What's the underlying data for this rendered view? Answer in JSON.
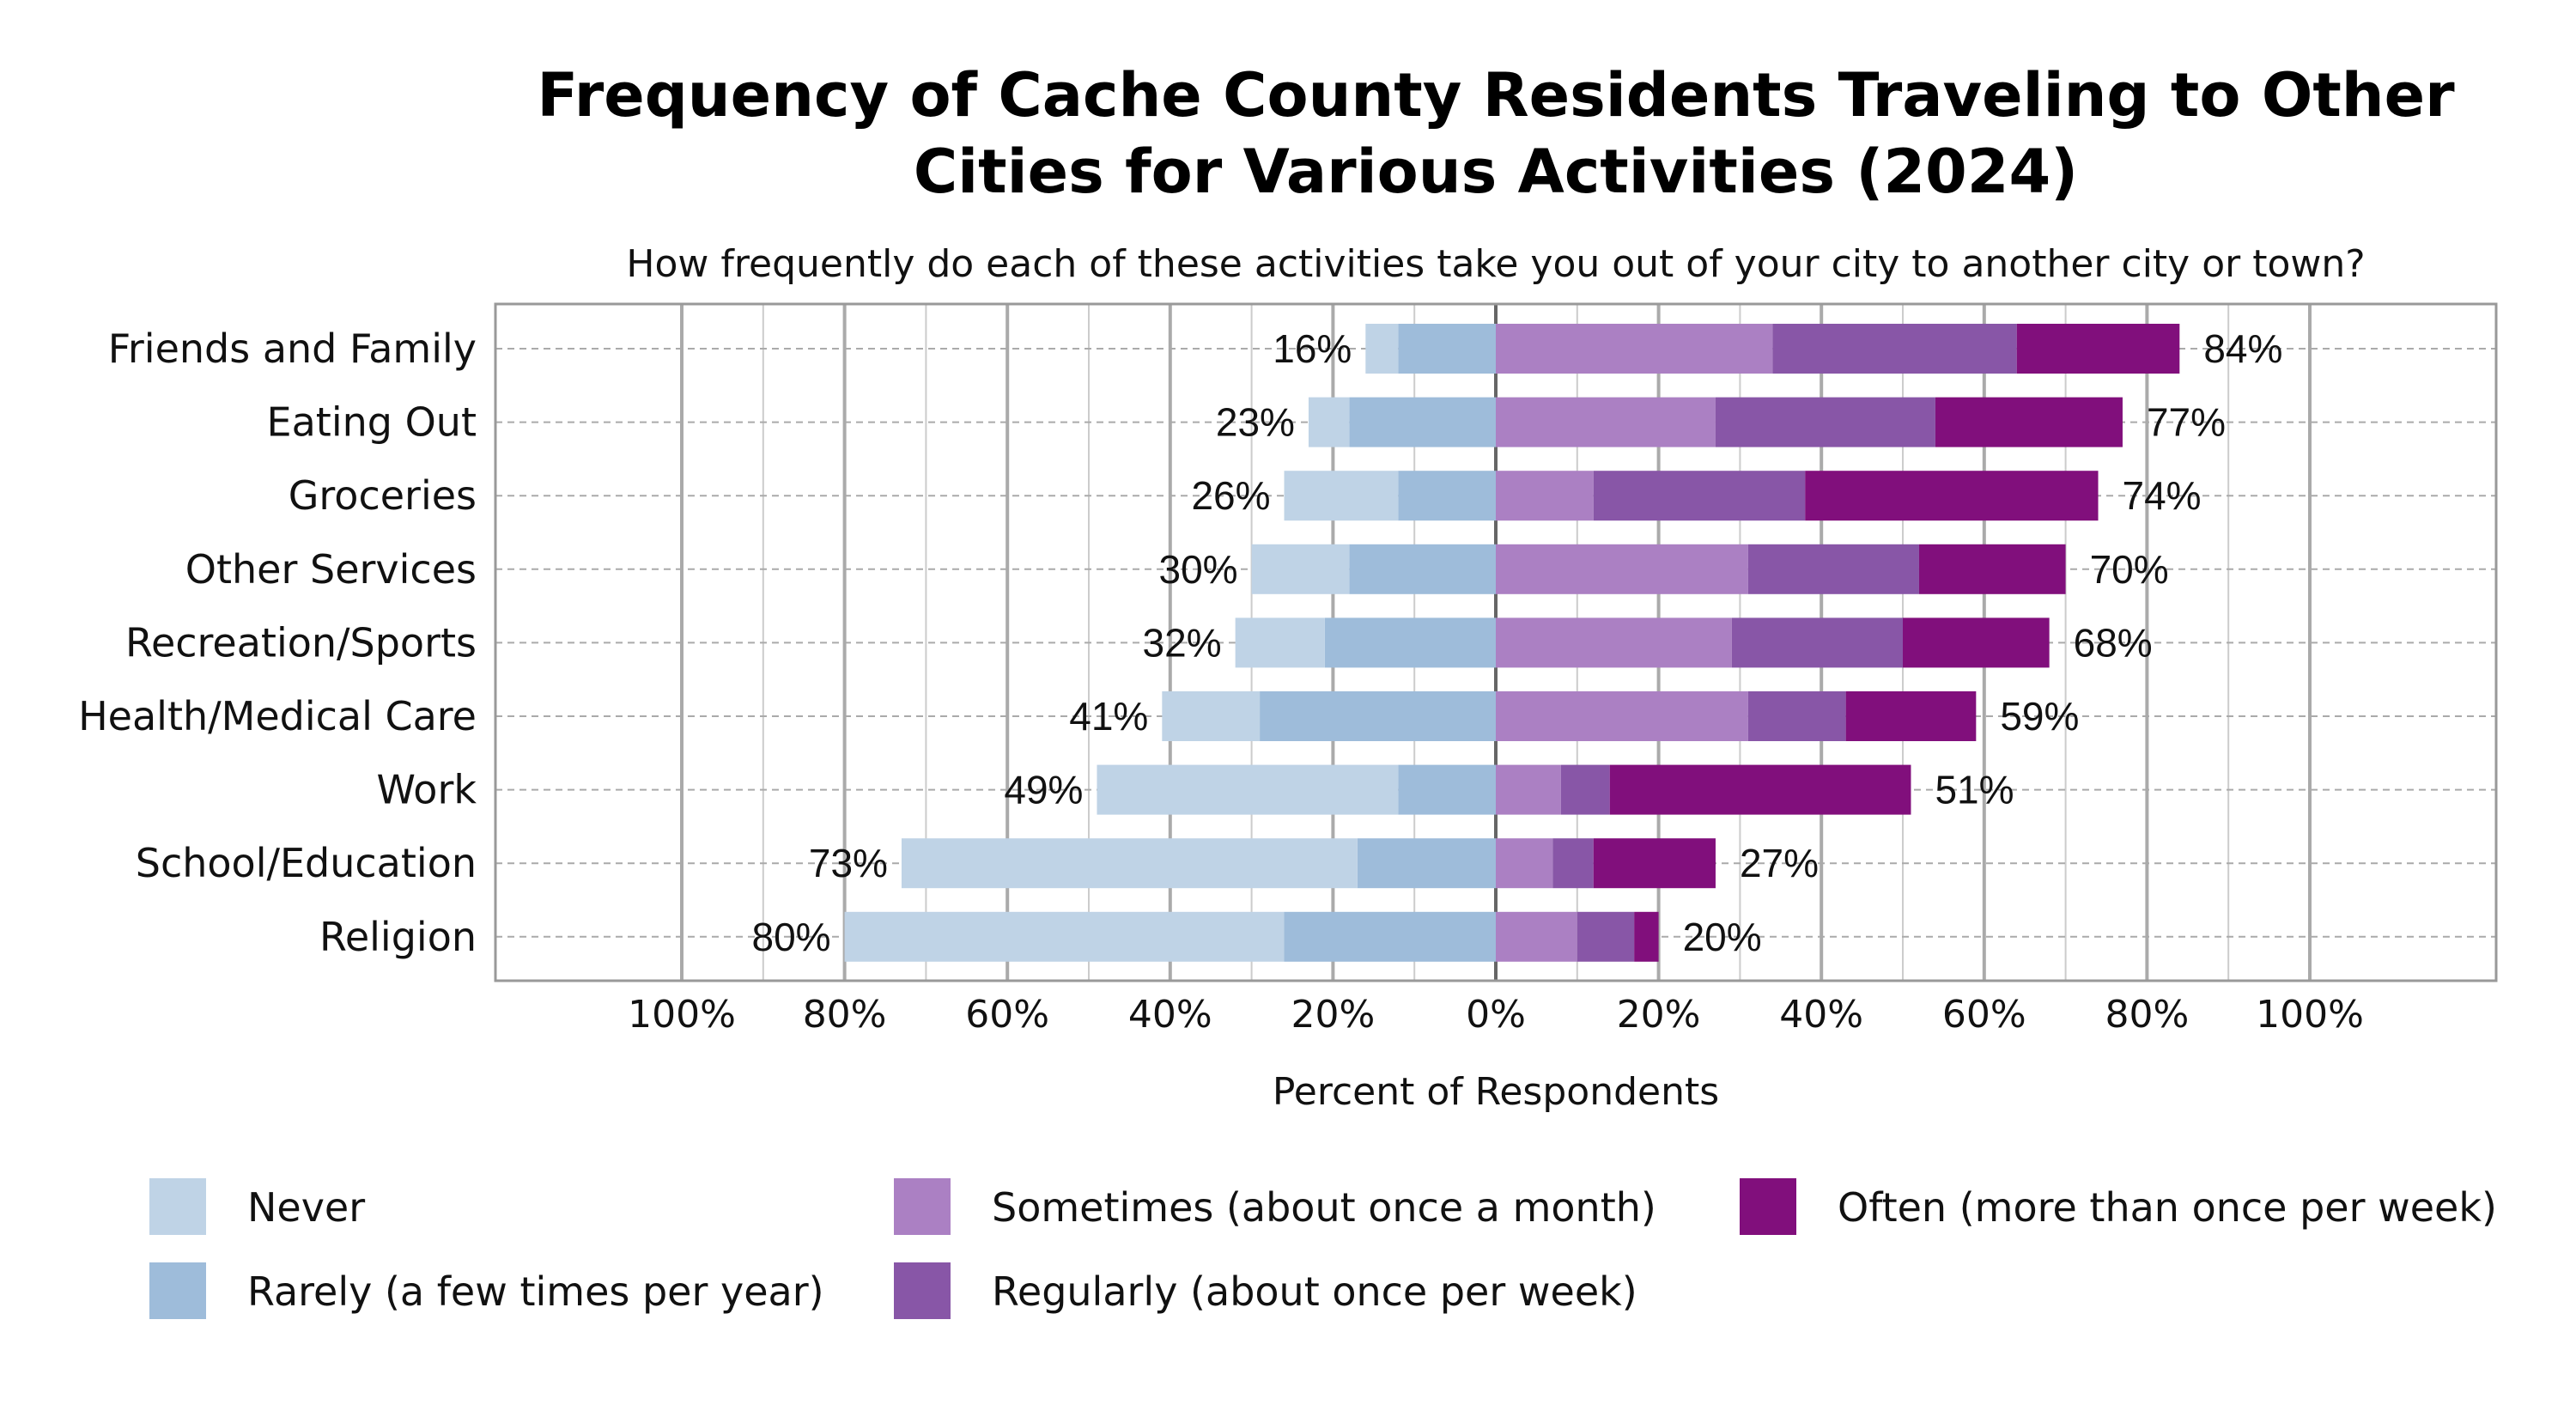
{
  "chart_data": {
    "type": "bar",
    "orientation": "horizontal",
    "stacking": "diverging",
    "title": [
      "Frequency of Cache County Residents Traveling to Other",
      "Cities for Various Activities (2024)"
    ],
    "subtitle": "How frequently do each of these activities take you out of your city to another city or town?",
    "xlabel": "Percent of Respondents",
    "xlim": [
      -100,
      100
    ],
    "xticks": [
      -100,
      -80,
      -60,
      -40,
      -20,
      0,
      20,
      40,
      60,
      80,
      100
    ],
    "xtick_labels": [
      "100%",
      "80%",
      "60%",
      "40%",
      "20%",
      "0%",
      "20%",
      "40%",
      "60%",
      "80%",
      "100%"
    ],
    "grid": true,
    "legend_position": "bottom",
    "categories": [
      "Friends and Family",
      "Eating Out",
      "Groceries",
      "Other Services",
      "Recreation/Sports",
      "Health/Medical Care",
      "Work",
      "School/Education",
      "Religion"
    ],
    "series": [
      {
        "name": "Never",
        "side": "left",
        "color": "#bfd3e6",
        "values": [
          4,
          5,
          14,
          12,
          11,
          12,
          37,
          56,
          54
        ]
      },
      {
        "name": "Rarely (a few times per year)",
        "side": "left",
        "color": "#9ebcda",
        "values": [
          12,
          18,
          12,
          18,
          21,
          29,
          12,
          17,
          26
        ]
      },
      {
        "name": "Sometimes (about once a month)",
        "side": "right",
        "color": "#ab80c3",
        "values": [
          34,
          27,
          12,
          31,
          29,
          31,
          8,
          7,
          10
        ]
      },
      {
        "name": "Regularly (about once per week)",
        "side": "right",
        "color": "#8856a7",
        "values": [
          30,
          27,
          26,
          21,
          21,
          12,
          6,
          5,
          7
        ]
      },
      {
        "name": "Often (more than once per week)",
        "side": "right",
        "color": "#810f7c",
        "values": [
          20,
          23,
          36,
          18,
          18,
          16,
          37,
          15,
          3
        ]
      }
    ],
    "left_totals": [
      "16%",
      "23%",
      "26%",
      "30%",
      "32%",
      "41%",
      "49%",
      "73%",
      "80%"
    ],
    "right_totals": [
      "84%",
      "77%",
      "74%",
      "70%",
      "68%",
      "59%",
      "51%",
      "27%",
      "20%"
    ]
  }
}
